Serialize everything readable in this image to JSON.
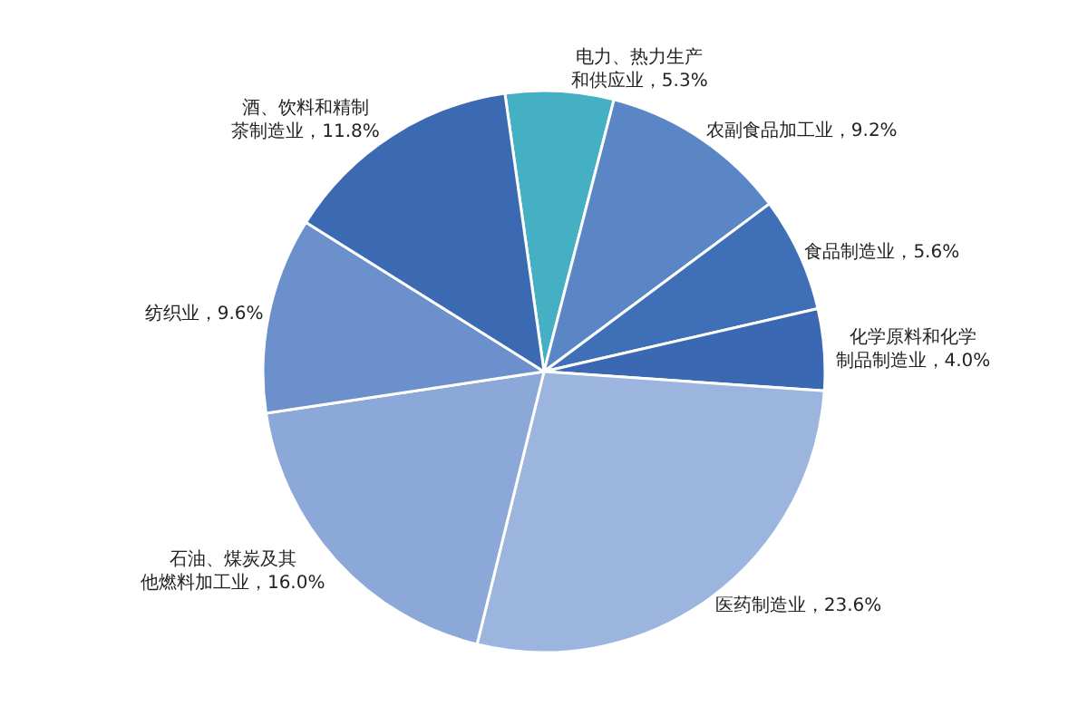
{
  "chart_data": {
    "type": "pie",
    "categories": [
      "电力、热力生产和供应业",
      "农副食品加工业",
      "食品制造业",
      "化学原料和化学制品制造业",
      "医药制造业",
      "石油、煤炭及其他燃料加工业",
      "纺织业",
      "酒、饮料和精制茶制造业"
    ],
    "values": [
      5.3,
      9.2,
      5.6,
      4.0,
      23.6,
      16.0,
      9.6,
      11.8
    ],
    "value_labels": [
      "5.3%",
      "9.2%",
      "5.6%",
      "4.0%",
      "23.6%",
      "16.0%",
      "9.6%",
      "11.8%"
    ],
    "colors": [
      "#45b0c4",
      "#5b86c6",
      "#3f6fb6",
      "#3a68b2",
      "#9bb5de",
      "#8ca8d8",
      "#6b90cc",
      "#3c6ab2"
    ]
  }
}
